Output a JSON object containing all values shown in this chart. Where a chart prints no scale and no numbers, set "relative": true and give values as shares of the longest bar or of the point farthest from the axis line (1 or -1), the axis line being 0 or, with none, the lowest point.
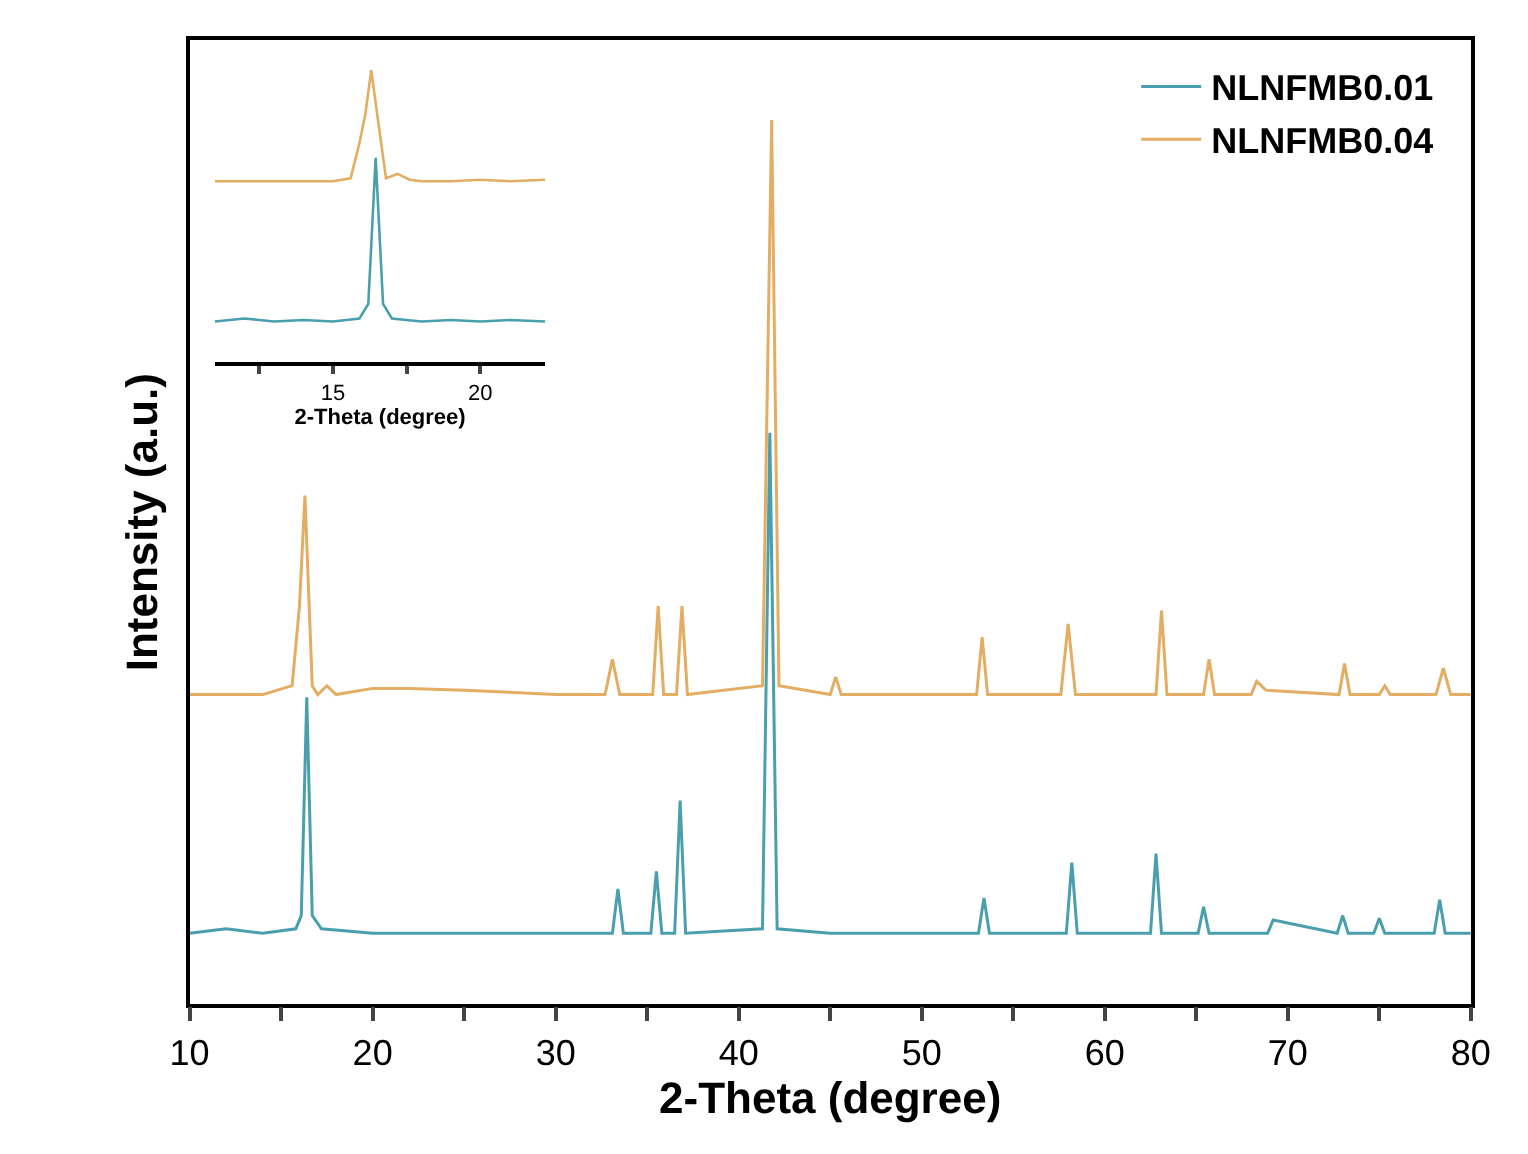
{
  "chart_data": [
    {
      "type": "line",
      "xlabel": "2-Theta (degree)",
      "ylabel": "Intensity (a.u.)",
      "relative": true,
      "xlim": [
        10,
        80
      ],
      "xticks": [
        10,
        {
          "value": 15,
          "label": null
        },
        20,
        {
          "value": 25,
          "label": null
        },
        30,
        {
          "value": 35,
          "label": null
        },
        40,
        {
          "value": 45,
          "label": null
        },
        50,
        {
          "value": 55,
          "label": null
        },
        60,
        {
          "value": 65,
          "label": null
        },
        70,
        {
          "value": 75,
          "label": null
        },
        80
      ],
      "legend": "top right",
      "marker": "none",
      "line_style": "solid",
      "tick_labels": "x",
      "series": [
        {
          "name": "NLNFMB0.01",
          "color": "#4a9fae",
          "x": [
            10,
            12,
            14,
            15.8,
            16.1,
            16.4,
            16.7,
            17.2,
            20,
            25,
            30,
            33.1,
            33.4,
            33.7,
            35.2,
            35.5,
            35.8,
            36.5,
            36.8,
            37.1,
            41.3,
            41.7,
            42.1,
            45,
            50,
            53.1,
            53.4,
            53.7,
            57.9,
            58.2,
            58.5,
            62.5,
            62.8,
            63.1,
            65.1,
            65.4,
            65.7,
            68.9,
            69.2,
            72.7,
            73.0,
            73.3,
            74.7,
            75.0,
            75.3,
            78.0,
            78.3,
            78.6,
            80
          ],
          "values": [
            0.08,
            0.085,
            0.08,
            0.085,
            0.1,
            0.347,
            0.1,
            0.085,
            0.08,
            0.08,
            0.08,
            0.08,
            0.13,
            0.08,
            0.08,
            0.15,
            0.08,
            0.08,
            0.23,
            0.08,
            0.085,
            0.646,
            0.085,
            0.08,
            0.08,
            0.08,
            0.12,
            0.08,
            0.08,
            0.16,
            0.08,
            0.08,
            0.17,
            0.08,
            0.08,
            0.11,
            0.08,
            0.08,
            0.095,
            0.08,
            0.1,
            0.08,
            0.08,
            0.097,
            0.08,
            0.08,
            0.118,
            0.08,
            0.08
          ]
        },
        {
          "name": "NLNFMB0.04",
          "color": "#e3ae63",
          "x": [
            10,
            12,
            14,
            15.6,
            16.0,
            16.3,
            16.7,
            17.0,
            17.5,
            18,
            20,
            22,
            25,
            28,
            30,
            32.7,
            33.1,
            33.5,
            35.3,
            35.6,
            35.9,
            36.6,
            36.9,
            37.2,
            41.3,
            41.8,
            42.2,
            45,
            45.3,
            45.6,
            50,
            53.0,
            53.3,
            53.6,
            57.6,
            58.0,
            58.4,
            62.8,
            63.1,
            63.4,
            65.4,
            65.7,
            66.0,
            68.0,
            68.3,
            68.8,
            72.8,
            73.1,
            73.4,
            75.0,
            75.3,
            75.6,
            78.1,
            78.5,
            78.9,
            80
          ],
          "values": [
            0.35,
            0.35,
            0.35,
            0.36,
            0.45,
            0.575,
            0.36,
            0.35,
            0.36,
            0.35,
            0.357,
            0.357,
            0.355,
            0.352,
            0.35,
            0.35,
            0.39,
            0.35,
            0.35,
            0.45,
            0.35,
            0.35,
            0.45,
            0.35,
            0.36,
            1.0,
            0.36,
            0.35,
            0.37,
            0.35,
            0.35,
            0.35,
            0.415,
            0.35,
            0.35,
            0.43,
            0.35,
            0.35,
            0.445,
            0.35,
            0.35,
            0.39,
            0.35,
            0.35,
            0.365,
            0.355,
            0.35,
            0.385,
            0.35,
            0.35,
            0.36,
            0.35,
            0.35,
            0.38,
            0.35,
            0.35
          ]
        }
      ]
    },
    {
      "type": "line",
      "xlabel": "2-Theta (degree)",
      "relative": true,
      "xlim": [
        11,
        22.2
      ],
      "xticks": [
        {
          "value": 12.5,
          "label": null
        },
        15,
        {
          "value": 17.5,
          "label": null
        },
        20
      ],
      "marker": "none",
      "line_style": "solid",
      "legend": false,
      "tick_labels": "x",
      "series": [
        {
          "color": "#4a9fae",
          "x": [
            11,
            12,
            13,
            14,
            15,
            15.9,
            16.2,
            16.45,
            16.7,
            17,
            18,
            19,
            20,
            21,
            22.2
          ],
          "values": [
            0.14,
            0.15,
            0.14,
            0.145,
            0.14,
            0.15,
            0.2,
            0.7,
            0.2,
            0.15,
            0.14,
            0.145,
            0.14,
            0.145,
            0.14
          ]
        },
        {
          "color": "#e3ae63",
          "x": [
            11,
            12,
            13,
            14,
            15,
            15.6,
            15.9,
            16.1,
            16.3,
            16.5,
            16.8,
            17.2,
            17.6,
            18,
            19,
            20,
            21,
            22.2
          ],
          "values": [
            0.62,
            0.62,
            0.62,
            0.62,
            0.62,
            0.63,
            0.75,
            0.85,
            1.0,
            0.85,
            0.63,
            0.645,
            0.625,
            0.62,
            0.62,
            0.625,
            0.62,
            0.625
          ]
        }
      ]
    }
  ]
}
